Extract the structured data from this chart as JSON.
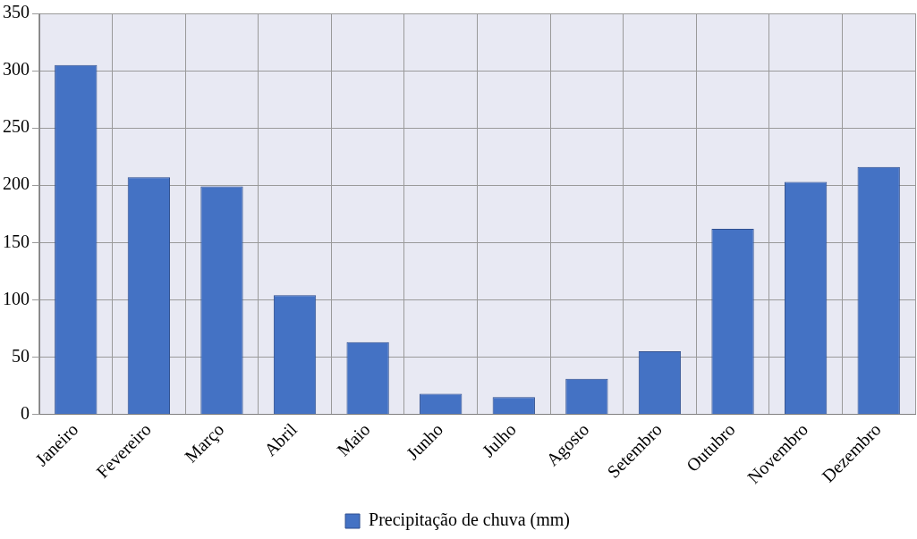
{
  "chart_data": {
    "type": "bar",
    "categories": [
      "Janeiro",
      "Fevereiro",
      "Março",
      "Abril",
      "Maio",
      "Junho",
      "Julho",
      "Agosto",
      "Setembro",
      "Outubro",
      "Novembro",
      "Dezembro"
    ],
    "series": [
      {
        "name": "Precipitação de chuva (mm)",
        "color": "#4472c4",
        "values": [
          305,
          207,
          199,
          104,
          63,
          18,
          15,
          31,
          55,
          162,
          203,
          216
        ]
      }
    ],
    "ylim": [
      0,
      350
    ],
    "yticks": [
      0,
      50,
      100,
      150,
      200,
      250,
      300,
      350
    ],
    "grid": true,
    "legend": "bottom"
  }
}
